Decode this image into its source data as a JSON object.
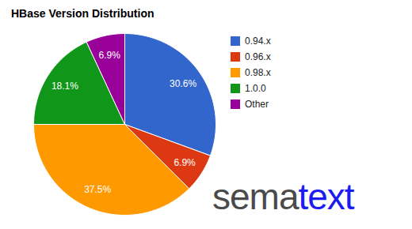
{
  "chart_data": {
    "type": "pie",
    "title": "HBase Version Distribution",
    "categories": [
      "0.94.x",
      "0.96.x",
      "0.98.x",
      "1.0.0",
      "Other"
    ],
    "values": [
      30.6,
      6.9,
      37.5,
      18.1,
      6.9
    ],
    "value_labels": [
      "30.6%",
      "6.9%",
      "37.5%",
      "18.1%",
      "6.9%"
    ],
    "colors": [
      "#3366cc",
      "#dc3912",
      "#ff9900",
      "#109618",
      "#990099"
    ],
    "data_labels": true,
    "legend": "right",
    "annotations": [
      "sematext"
    ]
  }
}
